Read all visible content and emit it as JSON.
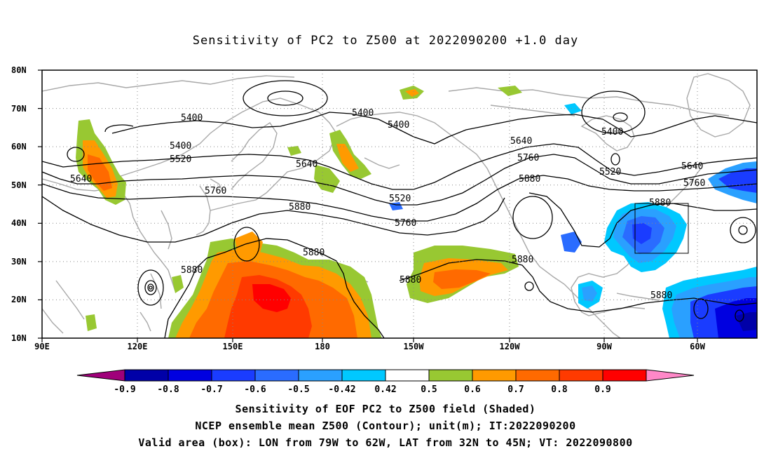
{
  "title": "Sensitivity of PC2 to Z500 at 2022090200 +1.0 day",
  "map": {
    "lat_labels": [
      "80N",
      "70N",
      "60N",
      "50N",
      "40N",
      "30N",
      "20N",
      "10N"
    ],
    "lon_labels": [
      "90E",
      "120E",
      "150E",
      "180",
      "150W",
      "120W",
      "90W",
      "60W"
    ],
    "contour_labels": [
      "5400",
      "5400",
      "5400",
      "5400",
      "5400",
      "5520",
      "5520",
      "5520",
      "5640",
      "5640",
      "5640",
      "5640",
      "5760",
      "5760",
      "5760",
      "5760",
      "5880",
      "5880",
      "5880",
      "5880",
      "5880",
      "5880",
      "5880",
      "5880"
    ],
    "box": {
      "lon_west": "79W",
      "lon_east": "62W",
      "lat_south": "32N",
      "lat_north": "45N"
    }
  },
  "colorbar": {
    "ticks": [
      "-0.9",
      "-0.8",
      "-0.7",
      "-0.6",
      "-0.5",
      "-0.42",
      "0.42",
      "0.5",
      "0.6",
      "0.7",
      "0.8",
      "0.9"
    ],
    "colors": [
      "#a0007a",
      "#0000a8",
      "#0000e0",
      "#1a3cff",
      "#2a6cff",
      "#2aa0ff",
      "#00c8ff",
      "#ffffff",
      "#98c832",
      "#ff9a00",
      "#ff6a00",
      "#ff3a00",
      "#ff0000",
      "#ff88c8"
    ]
  },
  "captions": {
    "line1": "Sensitivity of EOF PC2 to Z500 field (Shaded)",
    "line2": "NCEP ensemble mean Z500 (Contour); unit(m); IT:2022090200",
    "line3": "Valid area (box): LON from 79W to 62W, LAT from 32N to 45N; VT: 2022090800"
  }
}
